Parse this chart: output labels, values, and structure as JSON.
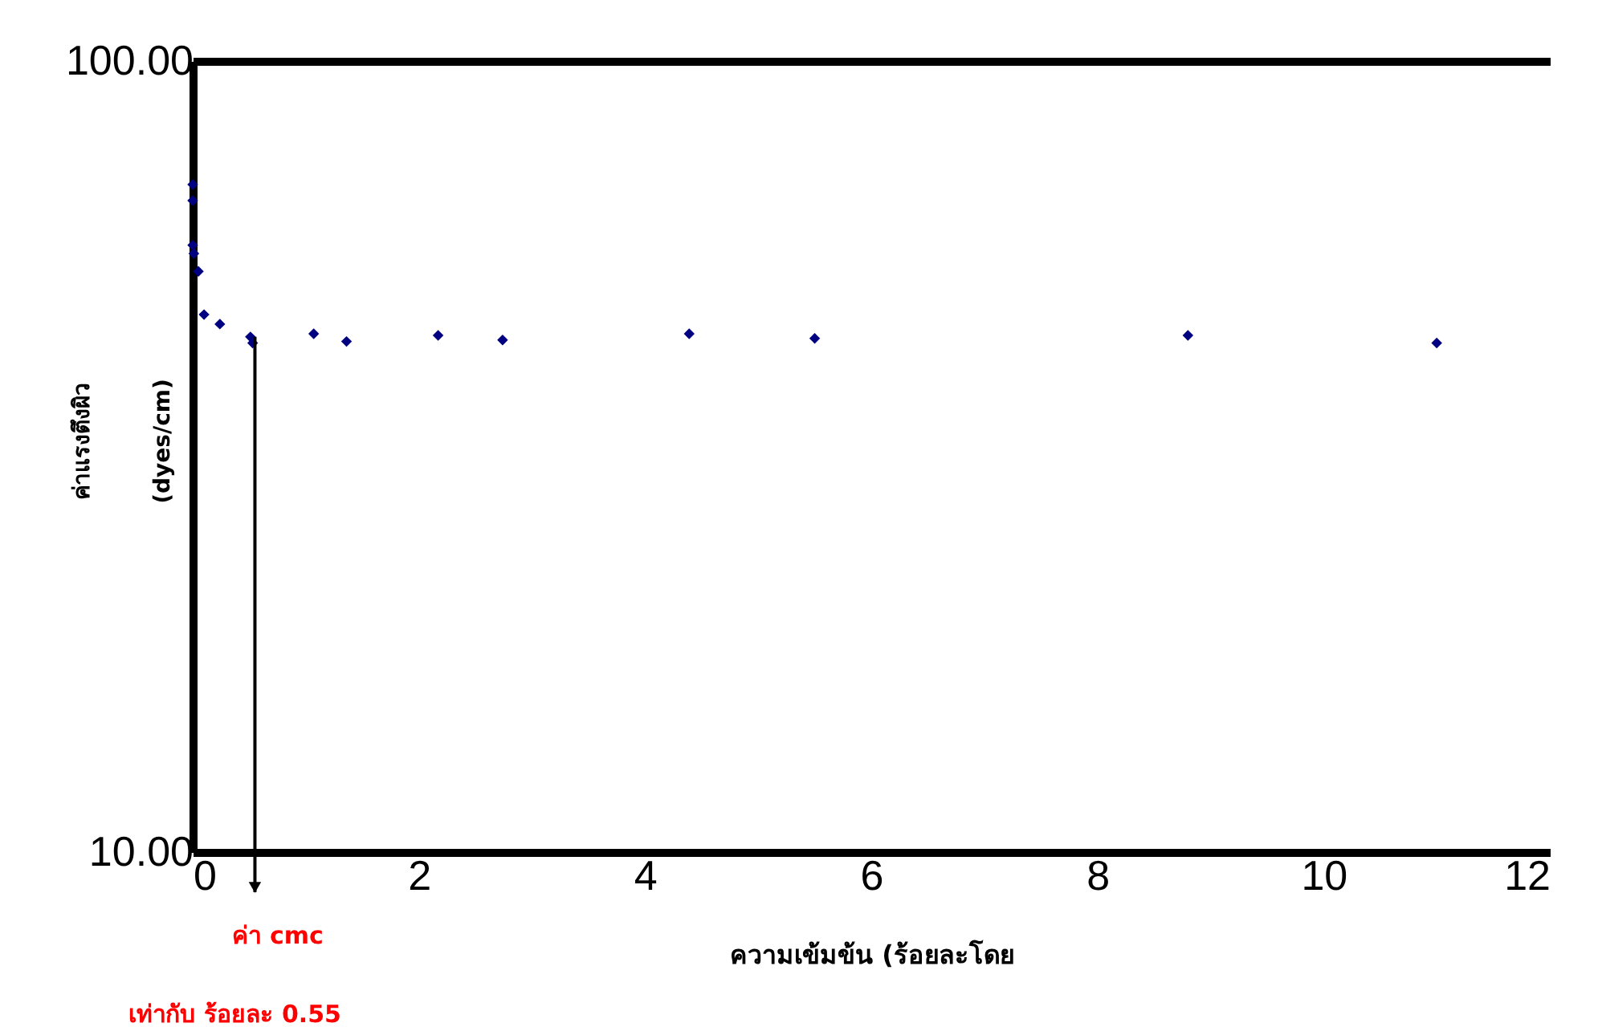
{
  "chart_data": {
    "type": "scatter",
    "xlabel": "ความเข้มข้น (ร้อยละโดย",
    "ylabel": "ค่าแรงตึงผิว\n(dyes/cm)",
    "x": [
      0,
      0,
      0,
      0.01,
      0.05,
      0.1,
      0.24,
      0.51,
      0.53,
      1.07,
      1.36,
      2.17,
      2.74,
      4.39,
      5.5,
      8.8,
      11.0
    ],
    "series": [
      {
        "color": "#000080",
        "values": [
          69.8,
          66.6,
          58.5,
          57.1,
          54.2,
          47.8,
          46.5,
          44.8,
          44.0,
          45.2,
          44.2,
          45.0,
          44.4,
          45.2,
          44.6,
          45.0,
          44.0
        ]
      }
    ],
    "xlim": [
      0,
      12
    ],
    "xticks": [
      0,
      2,
      4,
      6,
      8,
      10,
      12
    ],
    "ylim": [
      10,
      100
    ],
    "yticks": [
      {
        "value": 10,
        "label": "10.00"
      },
      {
        "value": 100,
        "label": "100.00"
      }
    ],
    "log": "y",
    "marker": "diamond",
    "annotations": [
      {
        "text": "ค่า cmc",
        "x": 0.55,
        "y": 44.8
      },
      "เท่ากับ ร้อยละ 0.55"
    ]
  }
}
